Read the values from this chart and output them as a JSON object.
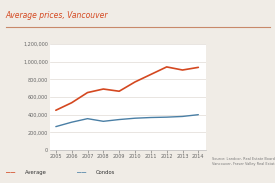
{
  "title": "Average prices, Vancouver",
  "title_color": "#d44820",
  "years": [
    2005,
    2006,
    2007,
    2008,
    2009,
    2010,
    2011,
    2012,
    2013,
    2014
  ],
  "average": [
    450000,
    535000,
    650000,
    690000,
    665000,
    770000,
    855000,
    940000,
    905000,
    935000
  ],
  "condos": [
    265000,
    315000,
    355000,
    325000,
    345000,
    360000,
    368000,
    372000,
    380000,
    400000
  ],
  "average_color": "#d44820",
  "condos_color": "#4a7fa5",
  "ylim": [
    0,
    1200000
  ],
  "yticks": [
    0,
    200000,
    400000,
    600000,
    800000,
    1000000,
    1200000
  ],
  "xticks": [
    2005,
    2006,
    2007,
    2008,
    2009,
    2010,
    2011,
    2012,
    2013,
    2014
  ],
  "source_text": "Source: Landcor, Real Estate Board Greater\nVancouver, Fraser Valley Real Estate Board",
  "legend_average": "Average",
  "legend_condos": "Condos",
  "bg_color": "#f0ece6",
  "plot_bg": "#ffffff",
  "grid_color": "#e0dbd5",
  "title_line_color": "#c8896a"
}
